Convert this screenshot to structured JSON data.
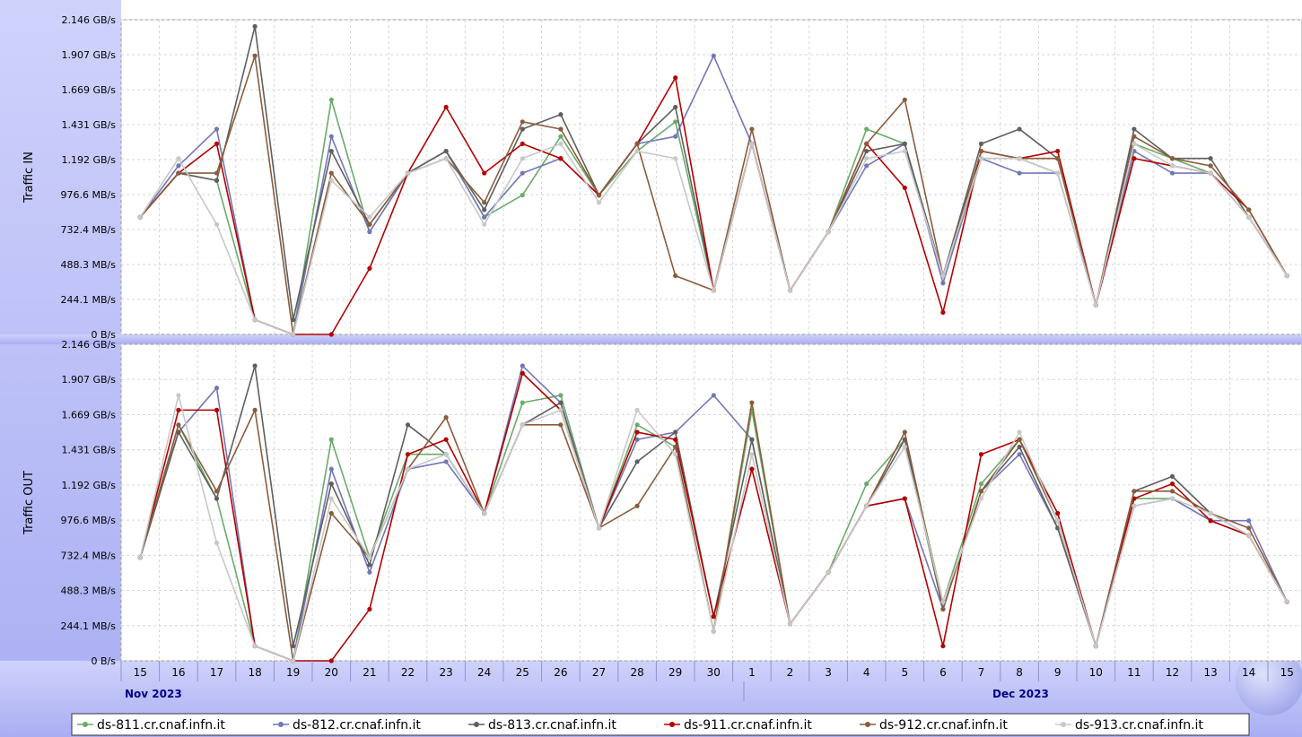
{
  "chart_data": [
    {
      "type": "line",
      "title": "",
      "ylabel": "Traffic IN",
      "xlabel": "",
      "ylim": [
        0,
        2.146
      ],
      "y_unit": "GB/s",
      "y_ticks": [
        "0 B/s",
        "244.1 MB/s",
        "488.3 MB/s",
        "732.4 MB/s",
        "976.6 MB/s",
        "1.192 GB/s",
        "1.431 GB/s",
        "1.669 GB/s",
        "1.907 GB/s",
        "2.146 GB/s"
      ],
      "grid": true,
      "legend": "bottom",
      "x": [
        "Nov 15",
        "Nov 16",
        "Nov 17",
        "Nov 18",
        "Nov 19",
        "Nov 20",
        "Nov 21",
        "Nov 22",
        "Nov 23",
        "Nov 24",
        "Nov 25",
        "Nov 26",
        "Nov 27",
        "Nov 28",
        "Nov 29",
        "Nov 30",
        "Dec 1",
        "Dec 2",
        "Dec 3",
        "Dec 4",
        "Dec 5",
        "Dec 6",
        "Dec 7",
        "Dec 8",
        "Dec 9",
        "Dec 10",
        "Dec 11",
        "Dec 12",
        "Dec 13",
        "Dec 14",
        "Dec 15"
      ],
      "series": [
        {
          "name": "ds-811.cr.cnaf.infn.it",
          "values": [
            0.8,
            1.1,
            1.05,
            0.1,
            0.0,
            1.6,
            0.7,
            1.1,
            1.25,
            0.8,
            0.95,
            1.35,
            0.95,
            1.25,
            1.45,
            0.3,
            1.3,
            0.3,
            0.7,
            1.4,
            1.3,
            0.4,
            1.2,
            1.2,
            1.1,
            0.2,
            1.3,
            1.2,
            1.1,
            0.8,
            0.4
          ]
        },
        {
          "name": "ds-812.cr.cnaf.infn.it",
          "values": [
            0.8,
            1.15,
            1.4,
            0.1,
            0.0,
            1.35,
            0.7,
            1.1,
            1.25,
            0.8,
            1.1,
            1.2,
            0.95,
            1.3,
            1.35,
            1.9,
            1.3,
            0.3,
            0.7,
            1.15,
            1.3,
            0.35,
            1.2,
            1.1,
            1.1,
            0.2,
            1.25,
            1.1,
            1.1,
            0.8,
            0.4
          ]
        },
        {
          "name": "ds-813.cr.cnaf.infn.it",
          "values": [
            0.8,
            1.1,
            1.05,
            2.1,
            0.1,
            1.25,
            0.75,
            1.1,
            1.25,
            0.85,
            1.4,
            1.5,
            0.95,
            1.3,
            1.55,
            0.3,
            1.3,
            0.3,
            0.7,
            1.25,
            1.3,
            0.4,
            1.3,
            1.4,
            1.2,
            0.2,
            1.4,
            1.2,
            1.2,
            0.8,
            0.4
          ]
        },
        {
          "name": "ds-911.cr.cnaf.infn.it",
          "values": [
            0.8,
            1.1,
            1.3,
            0.1,
            0.0,
            0.0,
            0.45,
            1.1,
            1.55,
            1.1,
            1.3,
            1.2,
            0.95,
            1.3,
            1.75,
            0.3,
            1.3,
            0.3,
            0.7,
            1.3,
            1.0,
            0.15,
            1.25,
            1.2,
            1.25,
            0.2,
            1.2,
            1.15,
            1.1,
            0.85,
            0.4
          ]
        },
        {
          "name": "ds-912.cr.cnaf.infn.it",
          "values": [
            0.8,
            1.1,
            1.1,
            1.9,
            0.0,
            1.1,
            0.75,
            1.1,
            1.2,
            0.9,
            1.45,
            1.4,
            0.95,
            1.3,
            0.4,
            0.3,
            1.4,
            0.3,
            0.7,
            1.3,
            1.6,
            0.4,
            1.25,
            1.2,
            1.2,
            0.2,
            1.35,
            1.2,
            1.15,
            0.85,
            0.4
          ]
        },
        {
          "name": "ds-913.cr.cnaf.infn.it",
          "values": [
            0.8,
            1.2,
            0.75,
            0.1,
            0.0,
            1.05,
            0.8,
            1.1,
            1.2,
            0.75,
            1.2,
            1.3,
            0.9,
            1.25,
            1.2,
            0.3,
            1.3,
            0.3,
            0.7,
            1.2,
            1.25,
            0.4,
            1.2,
            1.2,
            1.1,
            0.2,
            1.3,
            1.15,
            1.1,
            0.8,
            0.4
          ]
        }
      ]
    },
    {
      "type": "line",
      "title": "",
      "ylabel": "Traffic OUT",
      "xlabel": "",
      "ylim": [
        0,
        2.146
      ],
      "y_unit": "GB/s",
      "y_ticks": [
        "0 B/s",
        "244.1 MB/s",
        "488.3 MB/s",
        "732.4 MB/s",
        "976.6 MB/s",
        "1.192 GB/s",
        "1.431 GB/s",
        "1.669 GB/s",
        "1.907 GB/s",
        "2.146 GB/s"
      ],
      "grid": true,
      "legend": "bottom",
      "x": [
        "Nov 15",
        "Nov 16",
        "Nov 17",
        "Nov 18",
        "Nov 19",
        "Nov 20",
        "Nov 21",
        "Nov 22",
        "Nov 23",
        "Nov 24",
        "Nov 25",
        "Nov 26",
        "Nov 27",
        "Nov 28",
        "Nov 29",
        "Nov 30",
        "Dec 1",
        "Dec 2",
        "Dec 3",
        "Dec 4",
        "Dec 5",
        "Dec 6",
        "Dec 7",
        "Dec 8",
        "Dec 9",
        "Dec 10",
        "Dec 11",
        "Dec 12",
        "Dec 13",
        "Dec 14",
        "Dec 15"
      ],
      "series": [
        {
          "name": "ds-811.cr.cnaf.infn.it",
          "values": [
            0.7,
            1.6,
            1.1,
            0.1,
            0.0,
            1.5,
            0.7,
            1.4,
            1.4,
            1.0,
            1.75,
            1.8,
            0.9,
            1.6,
            1.45,
            0.2,
            1.7,
            0.25,
            0.6,
            1.2,
            1.5,
            0.4,
            1.2,
            1.5,
            0.95,
            0.1,
            1.1,
            1.1,
            0.95,
            0.85,
            0.4
          ]
        },
        {
          "name": "ds-812.cr.cnaf.infn.it",
          "values": [
            0.7,
            1.55,
            1.85,
            0.1,
            0.0,
            1.3,
            0.6,
            1.3,
            1.35,
            1.0,
            2.0,
            1.75,
            0.9,
            1.5,
            1.55,
            1.8,
            1.5,
            0.25,
            0.6,
            1.05,
            1.1,
            0.35,
            1.15,
            1.4,
            0.9,
            0.1,
            1.05,
            1.1,
            0.95,
            0.95,
            0.4
          ]
        },
        {
          "name": "ds-813.cr.cnaf.infn.it",
          "values": [
            0.7,
            1.55,
            1.1,
            2.0,
            0.1,
            1.2,
            0.65,
            1.6,
            1.4,
            1.0,
            1.6,
            1.75,
            0.9,
            1.35,
            1.55,
            0.3,
            1.5,
            0.25,
            0.6,
            1.05,
            1.5,
            0.35,
            1.15,
            1.45,
            0.9,
            0.1,
            1.15,
            1.25,
            1.0,
            0.85,
            0.4
          ]
        },
        {
          "name": "ds-911.cr.cnaf.infn.it",
          "values": [
            0.7,
            1.7,
            1.7,
            0.1,
            0.0,
            0.0,
            0.35,
            1.4,
            1.5,
            1.0,
            1.95,
            1.7,
            0.9,
            1.55,
            1.5,
            0.3,
            1.3,
            0.25,
            0.6,
            1.05,
            1.1,
            0.1,
            1.4,
            1.5,
            1.0,
            0.1,
            1.1,
            1.2,
            0.95,
            0.85,
            0.4
          ]
        },
        {
          "name": "ds-912.cr.cnaf.infn.it",
          "values": [
            0.7,
            1.6,
            1.15,
            1.7,
            0.0,
            1.0,
            0.7,
            1.3,
            1.65,
            1.0,
            1.6,
            1.6,
            0.9,
            1.05,
            1.45,
            0.2,
            1.75,
            0.25,
            0.6,
            1.05,
            1.55,
            0.35,
            1.15,
            1.5,
            0.95,
            0.1,
            1.15,
            1.15,
            1.0,
            0.9,
            0.4
          ]
        },
        {
          "name": "ds-913.cr.cnaf.infn.it",
          "values": [
            0.7,
            1.8,
            0.8,
            0.1,
            0.0,
            1.1,
            0.7,
            1.3,
            1.4,
            1.0,
            1.6,
            1.7,
            0.9,
            1.7,
            1.4,
            0.2,
            1.4,
            0.25,
            0.6,
            1.05,
            1.45,
            0.4,
            1.1,
            1.55,
            0.95,
            0.1,
            1.05,
            1.1,
            1.0,
            0.85,
            0.4
          ]
        }
      ]
    }
  ],
  "x_axis": {
    "day_labels": [
      "15",
      "16",
      "17",
      "18",
      "19",
      "20",
      "21",
      "22",
      "23",
      "24",
      "25",
      "26",
      "27",
      "28",
      "29",
      "30",
      "1",
      "2",
      "3",
      "4",
      "5",
      "6",
      "7",
      "8",
      "9",
      "10",
      "11",
      "12",
      "13",
      "14",
      "15"
    ],
    "month_labels": [
      "Nov 2023",
      "Dec 2023"
    ]
  },
  "legend": {
    "items": [
      {
        "label": "ds-811.cr.cnaf.infn.it",
        "color": "#6aab6a"
      },
      {
        "label": "ds-812.cr.cnaf.infn.it",
        "color": "#7377b7"
      },
      {
        "label": "ds-813.cr.cnaf.infn.it",
        "color": "#5f5f5f"
      },
      {
        "label": "ds-911.cr.cnaf.infn.it",
        "color": "#b40000"
      },
      {
        "label": "ds-912.cr.cnaf.infn.it",
        "color": "#8a5c3b"
      },
      {
        "label": "ds-913.cr.cnaf.infn.it",
        "color": "#c8c8c8"
      }
    ]
  },
  "colors": {
    "plot_bg": "#ffffff",
    "axis_band": "#b6bbf4",
    "grid": "#d6d6d6"
  }
}
